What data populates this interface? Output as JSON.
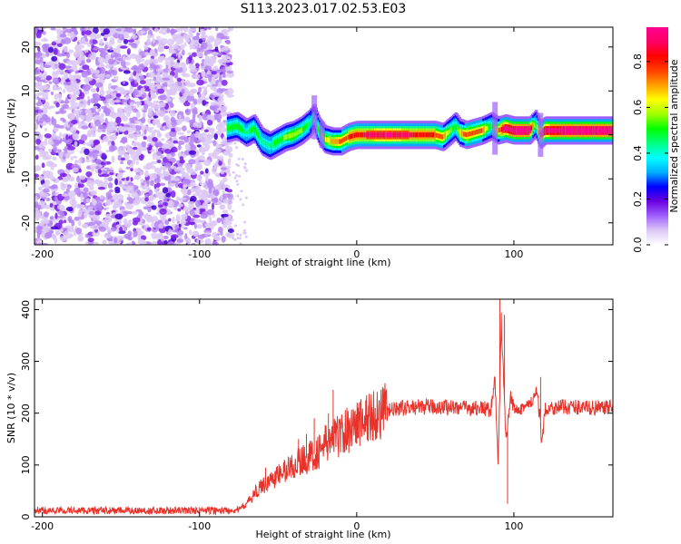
{
  "title": "S113.2023.017.02.53.E03",
  "chart_data": [
    {
      "type": "heatmap",
      "xlabel": "Height of straight line (km)",
      "ylabel": "Frequency (Hz)",
      "xlim": [
        -205,
        163
      ],
      "ylim": [
        -25,
        24.5
      ],
      "xticks": [
        -200,
        -100,
        0,
        100
      ],
      "xtick_labels": [
        "-200",
        "-100",
        "0",
        "100"
      ],
      "yticks": [
        20,
        10,
        0,
        -10,
        -20
      ],
      "ytick_labels": [
        "20",
        "10",
        "0",
        "-10",
        "-20"
      ],
      "colorbar": {
        "label": "Normalized spectral amplitude",
        "range": [
          0,
          0.95
        ],
        "ticks": [
          0.0,
          0.2,
          0.4,
          0.6,
          0.8
        ],
        "tick_labels": [
          "0.0",
          "0.2",
          "0.4",
          "0.6",
          "0.8"
        ],
        "colormap": [
          "#ffffff",
          "#dcc8f5",
          "#a060ff",
          "#6a00e0",
          "#0000ff",
          "#00b0ff",
          "#00ffff",
          "#00ff80",
          "#00ff00",
          "#a0ff00",
          "#ffff00",
          "#ffa000",
          "#ff4000",
          "#ff0000",
          "#ff0066",
          "#ff0090"
        ]
      },
      "noise_region_x": [
        -205,
        -80
      ],
      "ridge": {
        "x": [
          -82,
          -76,
          -70,
          -65,
          -60,
          -55,
          -50,
          -45,
          -40,
          -35,
          -30,
          -27,
          -24,
          -20,
          -15,
          -10,
          -5,
          0,
          10,
          20,
          30,
          40,
          50,
          55,
          60,
          63,
          66,
          70,
          80,
          86,
          90,
          95,
          100,
          110,
          114,
          117,
          120,
          130,
          140,
          150,
          163
        ],
        "y": [
          1.5,
          2.0,
          0.5,
          1.5,
          -1.5,
          -2.5,
          -1.5,
          -0.5,
          0.0,
          1.0,
          2.5,
          4.0,
          1.0,
          -1.0,
          -1.5,
          -1.5,
          -0.5,
          0.0,
          0.0,
          0.0,
          0.0,
          0.0,
          0.0,
          -0.5,
          1.0,
          2.0,
          0.5,
          0.0,
          1.0,
          2.0,
          1.0,
          1.5,
          1.0,
          1.0,
          2.5,
          0.0,
          1.0,
          1.0,
          1.0,
          1.0,
          1.0
        ],
        "amplitude": [
          0.35,
          0.35,
          0.3,
          0.35,
          0.3,
          0.3,
          0.35,
          0.4,
          0.45,
          0.4,
          0.3,
          0.25,
          0.35,
          0.45,
          0.55,
          0.6,
          0.65,
          0.7,
          0.75,
          0.8,
          0.75,
          0.7,
          0.65,
          0.6,
          0.4,
          0.3,
          0.5,
          0.65,
          0.6,
          0.3,
          0.55,
          0.85,
          0.9,
          0.9,
          0.3,
          0.7,
          0.85,
          0.9,
          0.9,
          0.9,
          0.9
        ]
      }
    },
    {
      "type": "line",
      "xlabel": "Height of straight line (km)",
      "ylabel": "SNR (10 * v/v)",
      "xlim": [
        -205,
        163
      ],
      "ylim": [
        0,
        420
      ],
      "xticks": [
        -200,
        -100,
        0,
        100
      ],
      "xtick_labels": [
        "-200",
        "-100",
        "0",
        "100"
      ],
      "yticks": [
        0,
        100,
        200,
        300,
        400
      ],
      "ytick_labels": [
        "0",
        "100",
        "200",
        "300",
        "400"
      ],
      "color": "#e8332b",
      "series": [
        {
          "x": [
            -205,
            -180,
            -150,
            -120,
            -100,
            -85,
            -75,
            -70,
            -65,
            -60,
            -55,
            -50,
            -45,
            -40,
            -35,
            -30,
            -25,
            -20,
            -15,
            -10,
            -5,
            0,
            10,
            20,
            30,
            40,
            50,
            60,
            70,
            80,
            85,
            88,
            90,
            92,
            95,
            98,
            100,
            105,
            110,
            115,
            118,
            120,
            130,
            140,
            150,
            163
          ],
          "y": [
            12,
            12,
            12,
            12,
            12,
            12,
            14,
            25,
            45,
            60,
            70,
            80,
            90,
            100,
            110,
            115,
            125,
            140,
            150,
            160,
            170,
            180,
            195,
            205,
            210,
            212,
            212,
            212,
            210,
            210,
            205,
            260,
            100,
            380,
            140,
            230,
            210,
            212,
            215,
            240,
            140,
            210,
            212,
            212,
            210,
            210
          ]
        }
      ],
      "spikes": [
        {
          "x": -58,
          "y": 95
        },
        {
          "x": -37,
          "y": 150
        },
        {
          "x": -32,
          "y": 160
        },
        {
          "x": -27,
          "y": 190
        },
        {
          "x": -18,
          "y": 200
        },
        {
          "x": -15,
          "y": 245
        },
        {
          "x": 91,
          "y": 420
        },
        {
          "x": 94,
          "y": 390
        },
        {
          "x": 96,
          "y": 25
        },
        {
          "x": 117,
          "y": 270
        }
      ]
    }
  ]
}
